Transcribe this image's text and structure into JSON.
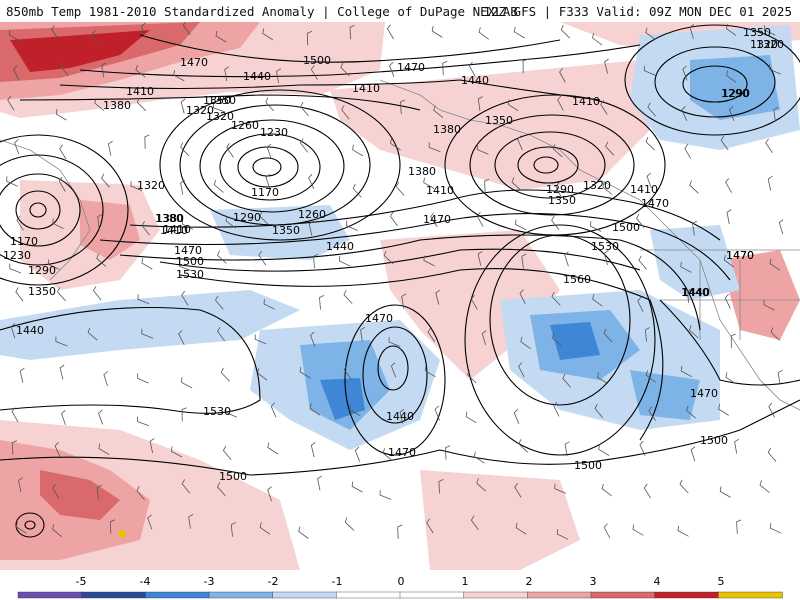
{
  "header": {
    "title_left": "850mb Temp 1981-2010 Standardized Anomaly | College of DuPage NEXLAB",
    "title_right": "12Z GFS | F333 Valid: 09Z MON DEC 01 2025"
  },
  "colors": {
    "neg5": "#6a4fb3",
    "neg4": "#2b4a9a",
    "neg3": "#3f86d6",
    "neg2": "#7db3e6",
    "neg1": "#c3daf2",
    "zero": "#ffffff",
    "pos1": "#f6d2d2",
    "pos2": "#eea4a4",
    "pos3": "#d9696b",
    "pos4": "#c0202a",
    "pos5": "#e6c200",
    "contour": "#000000",
    "coastline": "#888888",
    "barb": "#555555"
  },
  "colorbar": {
    "ticks": [
      "-5",
      "-4",
      "-3",
      "-2",
      "-1",
      "0",
      "1",
      "2",
      "3",
      "4",
      "5"
    ]
  },
  "contour_labels": [
    {
      "id": "1470-a",
      "text": "1470"
    },
    {
      "id": "1500-a",
      "text": "1500"
    },
    {
      "id": "1470-b",
      "text": "1470"
    },
    {
      "id": "1440-a",
      "text": "1440"
    },
    {
      "id": "1440-b",
      "text": "1440"
    },
    {
      "id": "1350-a",
      "text": "1350"
    },
    {
      "id": "1320-a",
      "text": "1320"
    },
    {
      "id": "1410-a",
      "text": "1410"
    },
    {
      "id": "1380-a",
      "text": "1380"
    },
    {
      "id": "1410-b",
      "text": "1410"
    },
    {
      "id": "1350-b",
      "text": "1350"
    },
    {
      "id": "1320-b",
      "text": "1320"
    },
    {
      "id": "1260-a",
      "text": "1260"
    },
    {
      "id": "1230-a",
      "text": "1230"
    },
    {
      "id": "1410-c",
      "text": "1410"
    },
    {
      "id": "1380-b",
      "text": "1380"
    },
    {
      "id": "1350-c",
      "text": "1350"
    },
    {
      "id": "1290-a",
      "text": "1290"
    },
    {
      "id": "1170-a",
      "text": "1170"
    },
    {
      "id": "1290-b",
      "text": "1290"
    },
    {
      "id": "1260-b",
      "text": "1260"
    },
    {
      "id": "1350-d",
      "text": "1350"
    },
    {
      "id": "1380-c",
      "text": "1380"
    },
    {
      "id": "1410-d",
      "text": "1410"
    },
    {
      "id": "1320-c",
      "text": "1320"
    },
    {
      "id": "1380-d",
      "text": "1380"
    },
    {
      "id": "1410-e",
      "text": "1410"
    },
    {
      "id": "1470-c",
      "text": "1470"
    },
    {
      "id": "1440-c",
      "text": "1440"
    },
    {
      "id": "1290-c",
      "text": "1290"
    },
    {
      "id": "1320-d",
      "text": "1320"
    },
    {
      "id": "1350-e",
      "text": "1350"
    },
    {
      "id": "1410-f",
      "text": "1410"
    },
    {
      "id": "1470-d",
      "text": "1470"
    },
    {
      "id": "1500-b",
      "text": "1500"
    },
    {
      "id": "1530-a",
      "text": "1530"
    },
    {
      "id": "1470-e",
      "text": "1470"
    },
    {
      "id": "1440-d",
      "text": "1440"
    },
    {
      "id": "1560-a",
      "text": "1560"
    },
    {
      "id": "1170-b",
      "text": "1170"
    },
    {
      "id": "1230-b",
      "text": "1230"
    },
    {
      "id": "1290-d",
      "text": "1290"
    },
    {
      "id": "1350-f",
      "text": "1350"
    },
    {
      "id": "1320-e",
      "text": "1320"
    },
    {
      "id": "1380-e",
      "text": "1380"
    },
    {
      "id": "1410-g",
      "text": "1410"
    },
    {
      "id": "1470-f",
      "text": "1470"
    },
    {
      "id": "1500-c",
      "text": "1500"
    },
    {
      "id": "1530-b",
      "text": "1530"
    },
    {
      "id": "1440-e",
      "text": "1440"
    },
    {
      "id": "1470-g",
      "text": "1470"
    },
    {
      "id": "1440-f",
      "text": "1440"
    },
    {
      "id": "1470-h",
      "text": "1470"
    },
    {
      "id": "1530-c",
      "text": "1530"
    },
    {
      "id": "1500-d",
      "text": "1500"
    },
    {
      "id": "1500-e",
      "text": "1500"
    },
    {
      "id": "1500-f",
      "text": "1500"
    },
    {
      "id": "1470-i",
      "text": "1470"
    },
    {
      "id": "1440-g",
      "text": "1440"
    },
    {
      "id": "1470-j",
      "text": "1470"
    },
    {
      "id": "1350-g",
      "text": "1350"
    },
    {
      "id": "1320-f",
      "text": "1320"
    },
    {
      "id": "1290-e",
      "text": "1290"
    }
  ]
}
